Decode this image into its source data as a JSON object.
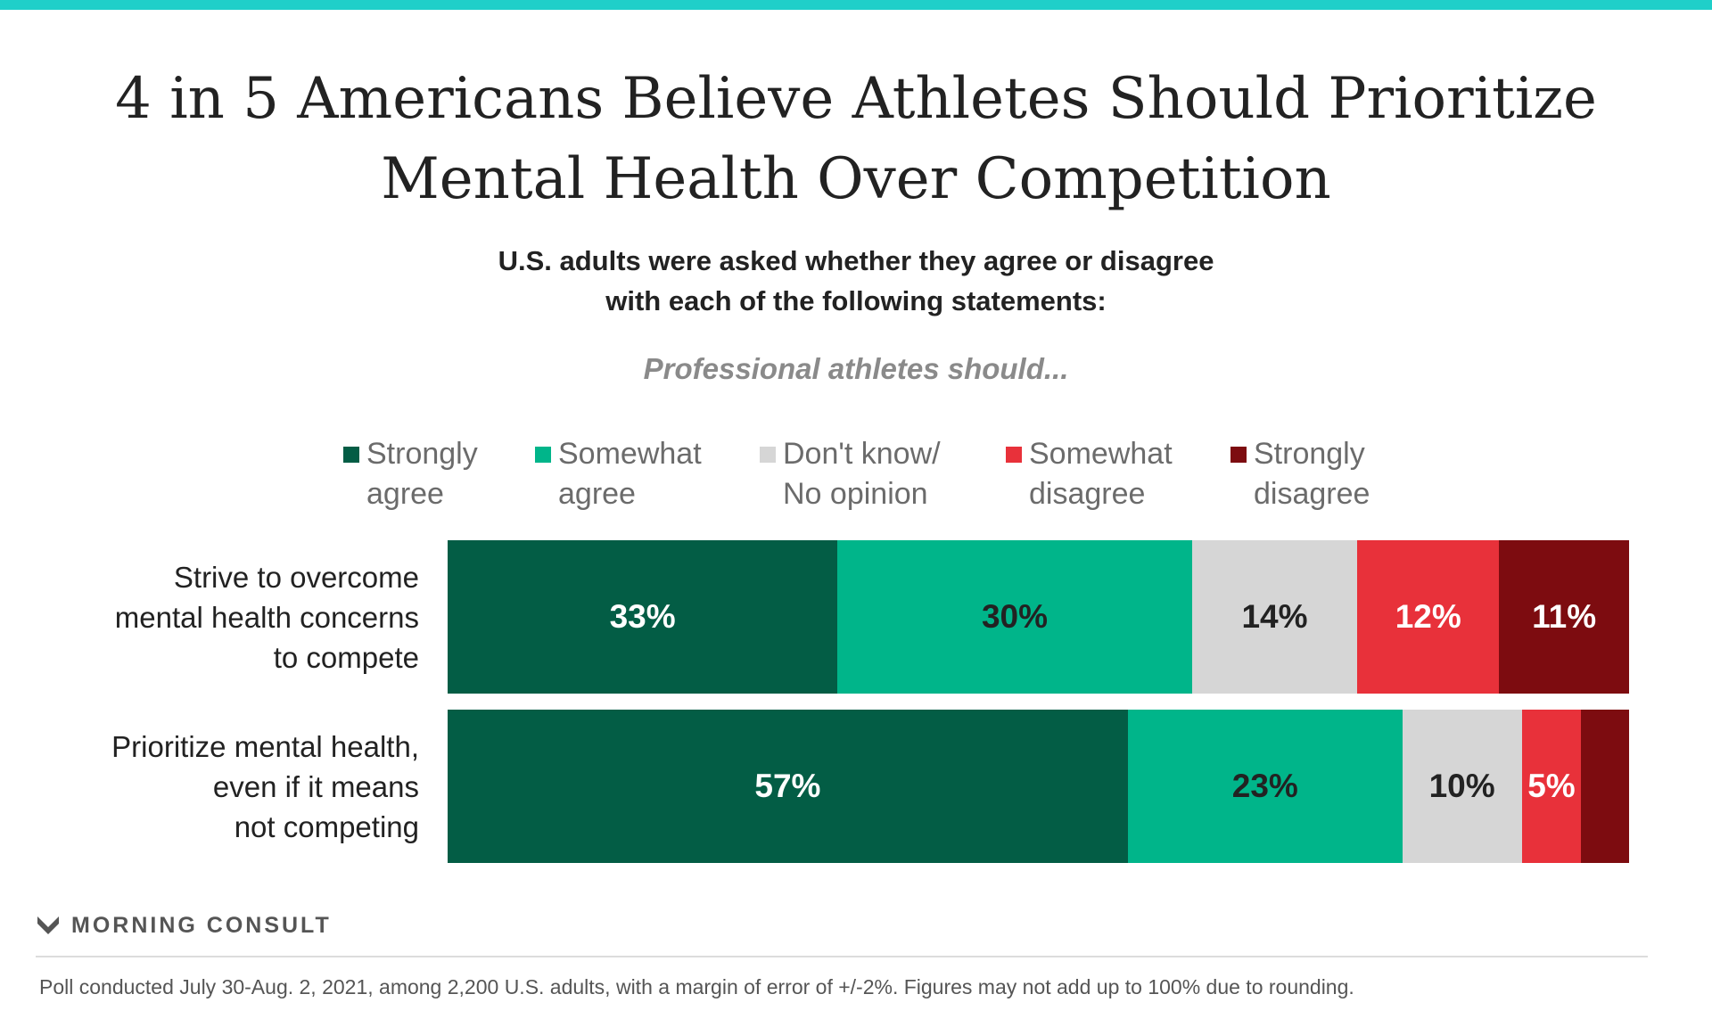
{
  "title_line1": "4 in 5 Americans Believe Athletes Should Prioritize",
  "title_line2": "Mental Health Over Competition",
  "subtitle_line1": "U.S. adults were asked whether they agree or disagree",
  "subtitle_line2": "with each of the following statements:",
  "lead": "Professional athletes should...",
  "brand": "MORNING CONSULT",
  "footnote": "Poll conducted July 30-Aug. 2, 2021, among 2,200 U.S. adults, with a margin of error of +/-2%. Figures may not add up to 100% due to rounding.",
  "colors": {
    "accent_stripe": "#1fcfc9",
    "strongly_agree": "#035d45",
    "somewhat_agree": "#00b58a",
    "dont_know": "#d6d6d6",
    "somewhat_disagree": "#e8313a",
    "strongly_disagree": "#7d0c10"
  },
  "chart_data": {
    "type": "bar",
    "orientation": "horizontal",
    "stacked": true,
    "legend_position": "top",
    "categories": [
      [
        "Strive to overcome",
        "mental health concerns",
        "to compete"
      ],
      [
        "Prioritize mental health,",
        "even if it means",
        "not competing"
      ]
    ],
    "series": [
      {
        "name": [
          "Strongly",
          "agree"
        ],
        "key": "strongly_agree",
        "values": [
          33,
          57
        ],
        "labels": [
          "33%",
          "57%"
        ],
        "label_color": "#ffffff"
      },
      {
        "name": [
          "Somewhat",
          "agree"
        ],
        "key": "somewhat_agree",
        "values": [
          30,
          23
        ],
        "labels": [
          "30%",
          "23%"
        ],
        "label_color": "#222222"
      },
      {
        "name": [
          "Don't know/",
          "No opinion"
        ],
        "key": "dont_know",
        "values": [
          14,
          10
        ],
        "labels": [
          "14%",
          "10%"
        ],
        "label_color": "#222222"
      },
      {
        "name": [
          "Somewhat",
          "disagree"
        ],
        "key": "somewhat_disagree",
        "values": [
          12,
          5
        ],
        "labels": [
          "12%",
          "5%"
        ],
        "label_color": "#ffffff"
      },
      {
        "name": [
          "Strongly",
          "disagree"
        ],
        "key": "strongly_disagree",
        "values": [
          11,
          4
        ],
        "labels": [
          "11%",
          ""
        ],
        "label_color": "#ffffff"
      }
    ]
  }
}
